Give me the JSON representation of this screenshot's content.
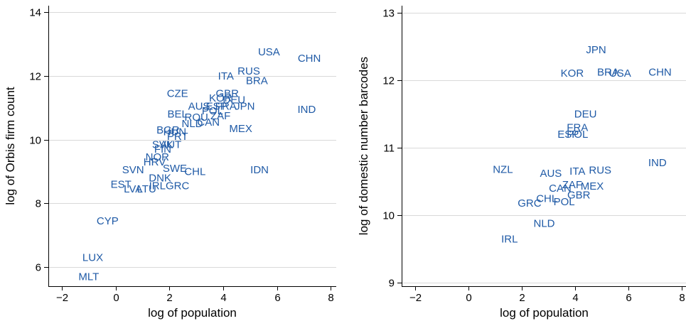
{
  "chart_data": [
    {
      "type": "scatter",
      "xlabel": "log of population",
      "ylabel": "log of Orbis firm count",
      "xlim": [
        -2.5,
        8.2
      ],
      "ylim": [
        5.4,
        14.2
      ],
      "xticks": [
        -2,
        0,
        2,
        4,
        6,
        8
      ],
      "xtick_labels": [
        "−2",
        "0",
        "2",
        "4",
        "6",
        "8"
      ],
      "yticks": [
        6,
        8,
        10,
        12,
        14
      ],
      "grid": true,
      "marker_color": "#1f5aa6",
      "points": [
        {
          "label": "USA",
          "x": 5.7,
          "y": 12.75
        },
        {
          "label": "CHN",
          "x": 7.2,
          "y": 12.55
        },
        {
          "label": "ITA",
          "x": 4.1,
          "y": 12.0
        },
        {
          "label": "RUS",
          "x": 4.95,
          "y": 12.15
        },
        {
          "label": "BRA",
          "x": 5.25,
          "y": 11.85
        },
        {
          "label": "IND",
          "x": 7.1,
          "y": 10.95
        },
        {
          "label": "CZE",
          "x": 2.3,
          "y": 11.45
        },
        {
          "label": "GBR",
          "x": 4.15,
          "y": 11.45
        },
        {
          "label": "KOR",
          "x": 3.9,
          "y": 11.3
        },
        {
          "label": "DEU",
          "x": 4.4,
          "y": 11.25
        },
        {
          "label": "AUS",
          "x": 3.1,
          "y": 11.05
        },
        {
          "label": "ESP",
          "x": 3.75,
          "y": 11.05
        },
        {
          "label": "FRA",
          "x": 4.1,
          "y": 11.05
        },
        {
          "label": "JPN",
          "x": 4.8,
          "y": 11.05
        },
        {
          "label": "POL",
          "x": 3.6,
          "y": 10.9
        },
        {
          "label": "BEL",
          "x": 2.3,
          "y": 10.8
        },
        {
          "label": "ROU",
          "x": 3.0,
          "y": 10.7
        },
        {
          "label": "ZAF",
          "x": 3.9,
          "y": 10.75
        },
        {
          "label": "NLD",
          "x": 2.85,
          "y": 10.5
        },
        {
          "label": "CAN",
          "x": 3.45,
          "y": 10.55
        },
        {
          "label": "MEX",
          "x": 4.65,
          "y": 10.35
        },
        {
          "label": "BGR",
          "x": 1.95,
          "y": 10.3
        },
        {
          "label": "HUN",
          "x": 2.2,
          "y": 10.25
        },
        {
          "label": "PRT",
          "x": 2.3,
          "y": 10.1
        },
        {
          "label": "SVK",
          "x": 1.75,
          "y": 9.85
        },
        {
          "label": "AUT",
          "x": 2.05,
          "y": 9.85
        },
        {
          "label": "FIN",
          "x": 1.75,
          "y": 9.7
        },
        {
          "label": "NOR",
          "x": 1.55,
          "y": 9.45
        },
        {
          "label": "HRV",
          "x": 1.45,
          "y": 9.3
        },
        {
          "label": "SWE",
          "x": 2.2,
          "y": 9.1
        },
        {
          "label": "SVN",
          "x": 0.65,
          "y": 9.05
        },
        {
          "label": "DNK",
          "x": 1.65,
          "y": 8.8
        },
        {
          "label": "CHL",
          "x": 2.95,
          "y": 9.0
        },
        {
          "label": "IDN",
          "x": 5.35,
          "y": 9.05
        },
        {
          "label": "EST",
          "x": 0.2,
          "y": 8.6
        },
        {
          "label": "IRL",
          "x": 1.55,
          "y": 8.55
        },
        {
          "label": "GRC",
          "x": 2.3,
          "y": 8.55
        },
        {
          "label": "LVA",
          "x": 0.65,
          "y": 8.45
        },
        {
          "label": "LTU",
          "x": 1.15,
          "y": 8.45
        },
        {
          "label": "CYP",
          "x": -0.3,
          "y": 7.45
        },
        {
          "label": "LUX",
          "x": -0.85,
          "y": 6.3
        },
        {
          "label": "MLT",
          "x": -1.0,
          "y": 5.7
        }
      ]
    },
    {
      "type": "scatter",
      "xlabel": "log of population",
      "ylabel": "log of domestic number barcodes",
      "xlim": [
        -2.5,
        8.2
      ],
      "ylim": [
        8.95,
        13.1
      ],
      "xticks": [
        -2,
        0,
        2,
        4,
        6,
        8
      ],
      "xtick_labels": [
        "−2",
        "0",
        "2",
        "4",
        "6",
        "8"
      ],
      "yticks": [
        9,
        10,
        11,
        12,
        13
      ],
      "grid": true,
      "marker_color": "#1f5aa6",
      "points": [
        {
          "label": "JPN",
          "x": 4.8,
          "y": 12.45
        },
        {
          "label": "KOR",
          "x": 3.9,
          "y": 12.1
        },
        {
          "label": "BRA",
          "x": 5.25,
          "y": 12.12
        },
        {
          "label": "USA",
          "x": 5.7,
          "y": 12.1
        },
        {
          "label": "CHN",
          "x": 7.2,
          "y": 12.12
        },
        {
          "label": "DEU",
          "x": 4.4,
          "y": 11.5
        },
        {
          "label": "FRA",
          "x": 4.1,
          "y": 11.3
        },
        {
          "label": "ESP",
          "x": 3.75,
          "y": 11.2
        },
        {
          "label": "POL",
          "x": 4.1,
          "y": 11.2
        },
        {
          "label": "IND",
          "x": 7.1,
          "y": 10.78
        },
        {
          "label": "NZL",
          "x": 1.3,
          "y": 10.68
        },
        {
          "label": "AUS",
          "x": 3.1,
          "y": 10.62
        },
        {
          "label": "ITA",
          "x": 4.1,
          "y": 10.65
        },
        {
          "label": "RUS",
          "x": 4.95,
          "y": 10.67
        },
        {
          "label": "ZAF",
          "x": 3.9,
          "y": 10.45
        },
        {
          "label": "CAN",
          "x": 3.45,
          "y": 10.4
        },
        {
          "label": "MEX",
          "x": 4.65,
          "y": 10.43
        },
        {
          "label": "GBR",
          "x": 4.15,
          "y": 10.3
        },
        {
          "label": "CHL",
          "x": 2.95,
          "y": 10.25
        },
        {
          "label": "POL",
          "x": 3.6,
          "y": 10.2
        },
        {
          "label": "GRC",
          "x": 2.3,
          "y": 10.18
        },
        {
          "label": "NLD",
          "x": 2.85,
          "y": 9.88
        },
        {
          "label": "IRL",
          "x": 1.55,
          "y": 9.65
        }
      ]
    }
  ]
}
